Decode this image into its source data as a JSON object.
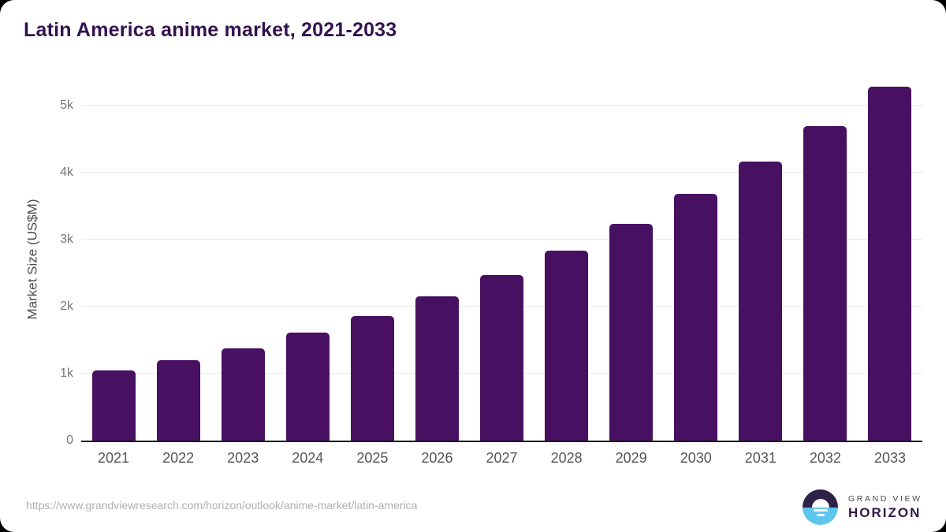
{
  "title": "Latin America anime market, 2021-2033",
  "source": {
    "url_text": "https://www.grandviewresearch.com/horizon/outlook/anime-market/latin-america"
  },
  "branding": {
    "name_top": "GRAND VIEW",
    "name_bottom": "HORIZON",
    "logo_icon": "horizon-sun-icon",
    "logo_top_color": "#2e2147",
    "logo_bottom_color": "#5ec6ee"
  },
  "colors": {
    "bar": "#481061",
    "title_text": "#32124e",
    "axis_line": "#1a1a1a",
    "grid_line": "#e7e7e7",
    "y_tick_text": "#757575",
    "x_tick_text": "#555555",
    "url_text": "#b0b0b0",
    "background": "#ffffff",
    "frame": "#000000"
  },
  "chart_data": {
    "type": "bar",
    "title": "Latin America anime market, 2021-2033",
    "xlabel": "",
    "ylabel": "Market Size (US$M)",
    "categories": [
      "2021",
      "2022",
      "2023",
      "2024",
      "2025",
      "2026",
      "2027",
      "2028",
      "2029",
      "2030",
      "2031",
      "2032",
      "2033"
    ],
    "values": [
      1050,
      1200,
      1380,
      1610,
      1860,
      2150,
      2470,
      2830,
      3230,
      3680,
      4170,
      4700,
      5280
    ],
    "ylim": [
      0,
      5400
    ],
    "yticks": [
      {
        "value": 0,
        "label": "0"
      },
      {
        "value": 1000,
        "label": "1k"
      },
      {
        "value": 2000,
        "label": "2k"
      },
      {
        "value": 3000,
        "label": "3k"
      },
      {
        "value": 4000,
        "label": "4k"
      },
      {
        "value": 5000,
        "label": "5k"
      }
    ],
    "grid": "horizontal-only",
    "legend": "none",
    "bar_corner_radius": "rounded-top"
  }
}
